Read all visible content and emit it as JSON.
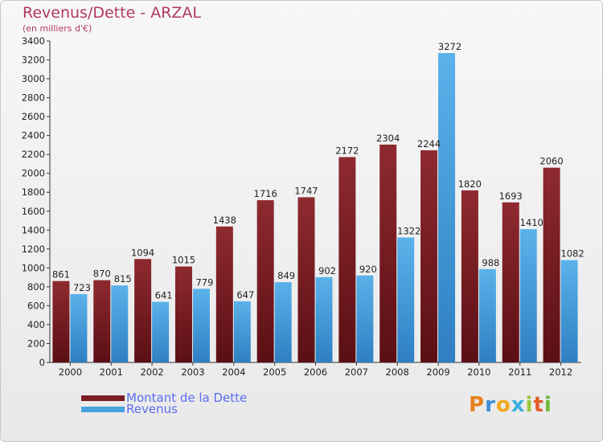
{
  "title": "Revenus/Dette - ARZAL",
  "subtitle": "(en milliers d'€)",
  "brand": {
    "letters": [
      {
        "ch": "P",
        "color": "#e8821e"
      },
      {
        "ch": "r",
        "color": "#3c8fd6"
      },
      {
        "ch": "o",
        "color": "#f0a81c"
      },
      {
        "ch": "x",
        "color": "#3ab0e0"
      },
      {
        "ch": "i",
        "color": "#9bc43a"
      },
      {
        "ch": "t",
        "color": "#e45c2a"
      },
      {
        "ch": "i",
        "color": "#6cb83a"
      }
    ]
  },
  "colors": {
    "dette": "#7a1d22",
    "revenus": "#4aa3e0"
  },
  "chart_data": {
    "type": "bar",
    "title": "Revenus/Dette - ARZAL",
    "subtitle": "(en milliers d'€)",
    "categories": [
      "2000",
      "2001",
      "2002",
      "2003",
      "2004",
      "2005",
      "2006",
      "2007",
      "2008",
      "2009",
      "2010",
      "2011",
      "2012"
    ],
    "series": [
      {
        "name": "Montant de la Dette",
        "values": [
          861,
          870,
          1094,
          1015,
          1438,
          1716,
          1747,
          2172,
          2304,
          2244,
          1820,
          1693,
          2060
        ]
      },
      {
        "name": "Revenus",
        "values": [
          723,
          815,
          641,
          779,
          647,
          849,
          902,
          920,
          1322,
          3272,
          988,
          1410,
          1082
        ]
      }
    ],
    "ylim": [
      0,
      3400
    ],
    "yticks": [
      "0",
      "200",
      "400",
      "600",
      "800",
      "1000",
      "1200",
      "1400",
      "1600",
      "1800",
      "2000",
      "2200",
      "2400",
      "2600",
      "2800",
      "3000",
      "3200",
      "3400"
    ],
    "grid": false,
    "legend": "bottom-left"
  }
}
